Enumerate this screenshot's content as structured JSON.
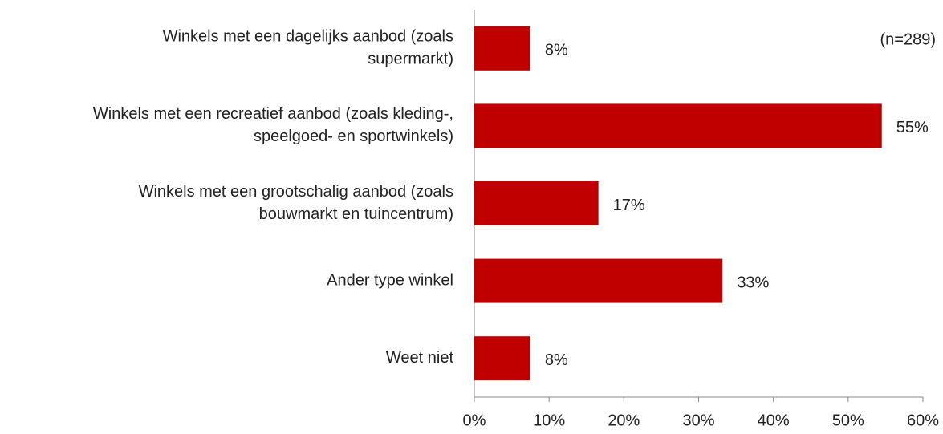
{
  "chart_data": {
    "type": "barh",
    "categories": [
      [
        "Winkels met een dagelijks aanbod (zoals",
        "supermarkt)"
      ],
      [
        "Winkels met een recreatief aanbod  (zoals kleding-,",
        "speelgoed- en sportwinkels)"
      ],
      [
        "Winkels met een grootschalig aanbod (zoals",
        "bouwmarkt en tuincentrum)"
      ],
      [
        "Ander type winkel"
      ],
      [
        "Weet niet"
      ]
    ],
    "values": [
      7.5,
      54.5,
      16.6,
      33.2,
      7.5
    ],
    "value_labels": [
      "8%",
      "55%",
      "17%",
      "33%",
      "8%"
    ],
    "color": "#c00000",
    "xlim": [
      0,
      60
    ],
    "xticks": [
      {
        "value": 0,
        "label": "0%"
      },
      {
        "value": 10,
        "label": "10%"
      },
      {
        "value": 20,
        "label": "20%"
      },
      {
        "value": 30,
        "label": "30%"
      },
      {
        "value": 40,
        "label": "40%"
      },
      {
        "value": 50,
        "label": "50%"
      },
      {
        "value": 60,
        "label": "60%"
      }
    ],
    "annotation": "(n=289)"
  }
}
